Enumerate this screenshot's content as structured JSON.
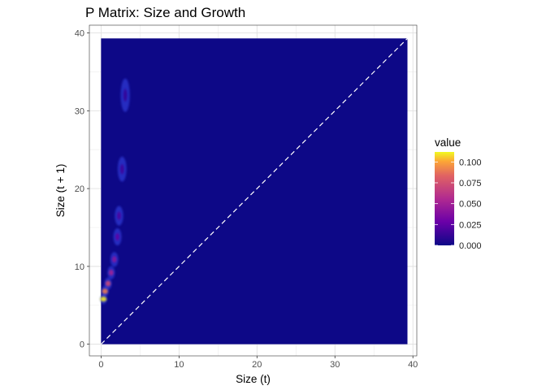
{
  "chart_data": {
    "type": "heatmap",
    "title": "P Matrix: Size and Growth",
    "xlabel": "Size (t)",
    "ylabel": "Size (t + 1)",
    "xlim": [
      -1.5,
      40.5
    ],
    "ylim": [
      -1.5,
      41.0
    ],
    "data_range": [
      0,
      39.3
    ],
    "xticks": [
      0,
      10,
      20,
      30,
      40
    ],
    "yticks": [
      0,
      10,
      20,
      30,
      40
    ],
    "grid": true,
    "background_value": 0.0,
    "hotspots": [
      {
        "x": 0.3,
        "y": 5.8,
        "value": 0.11
      },
      {
        "x": 0.5,
        "y": 6.8,
        "value": 0.09
      },
      {
        "x": 0.9,
        "y": 7.8,
        "value": 0.07
      },
      {
        "x": 1.3,
        "y": 9.2,
        "value": 0.05
      },
      {
        "x": 1.7,
        "y": 10.9,
        "value": 0.04
      },
      {
        "x": 2.1,
        "y": 13.8,
        "value": 0.025
      },
      {
        "x": 2.3,
        "y": 16.5,
        "value": 0.02
      },
      {
        "x": 2.7,
        "y": 22.5,
        "value": 0.015
      },
      {
        "x": 3.1,
        "y": 32.0,
        "value": 0.012
      }
    ],
    "reference_line": {
      "type": "identity",
      "style": "dashed",
      "color": "#ffffff"
    },
    "legend": {
      "title": "value",
      "breaks": [
        "0.100",
        "0.075",
        "0.050",
        "0.025",
        "0.000"
      ],
      "break_values": [
        0.1,
        0.075,
        0.05,
        0.025,
        0.0
      ],
      "limits": [
        0.0,
        0.112
      ],
      "colormap": "plasma",
      "placement": "right"
    }
  }
}
